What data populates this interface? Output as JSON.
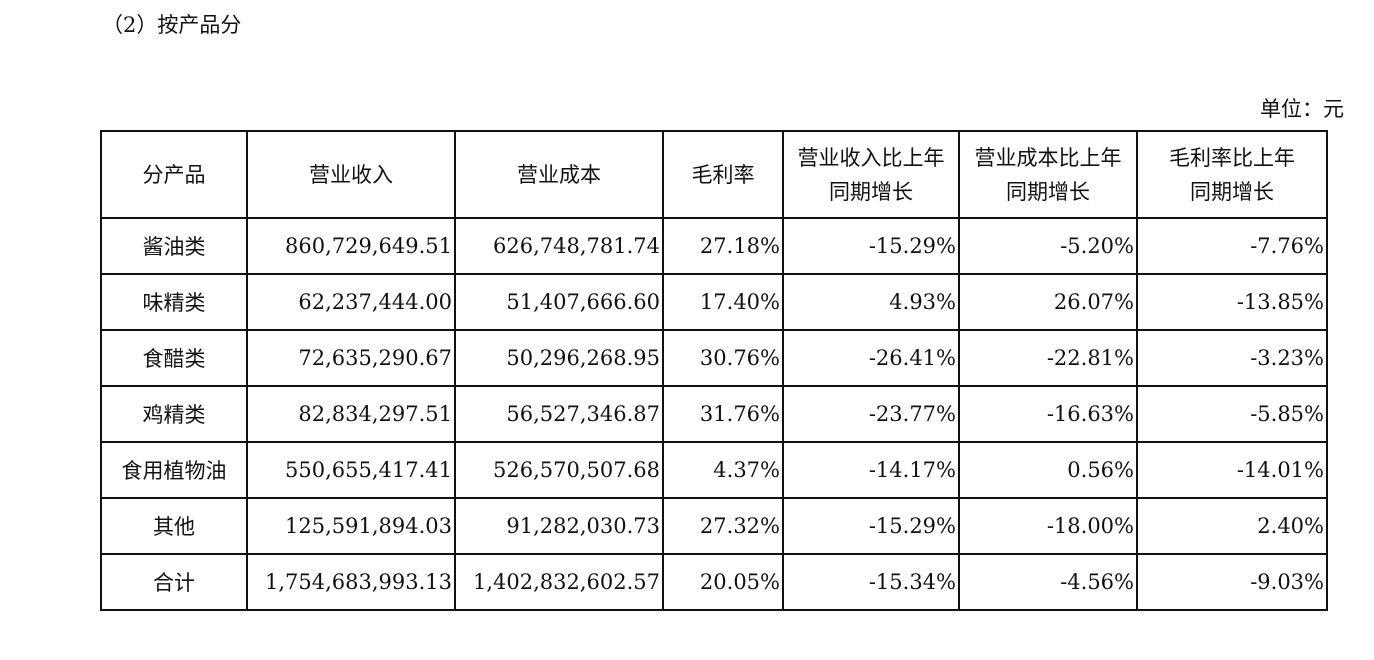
{
  "section_title": "（2）按产品分",
  "unit_label": "单位：元",
  "table": {
    "headers": [
      [
        "分产品"
      ],
      [
        "营业收入"
      ],
      [
        "营业成本"
      ],
      [
        "毛利率"
      ],
      [
        "营业收入比上年",
        "同期增长"
      ],
      [
        "营业成本比上年",
        "同期增长"
      ],
      [
        "毛利率比上年",
        "同期增长"
      ]
    ],
    "rows": [
      [
        "酱油类",
        "860,729,649.51",
        "626,748,781.74",
        "27.18%",
        "-15.29%",
        "-5.20%",
        "-7.76%"
      ],
      [
        "味精类",
        "62,237,444.00",
        "51,407,666.60",
        "17.40%",
        "4.93%",
        "26.07%",
        "-13.85%"
      ],
      [
        "食醋类",
        "72,635,290.67",
        "50,296,268.95",
        "30.76%",
        "-26.41%",
        "-22.81%",
        "-3.23%"
      ],
      [
        "鸡精类",
        "82,834,297.51",
        "56,527,346.87",
        "31.76%",
        "-23.77%",
        "-16.63%",
        "-5.85%"
      ],
      [
        "食用植物油",
        "550,655,417.41",
        "526,570,507.68",
        "4.37%",
        "-14.17%",
        "0.56%",
        "-14.01%"
      ],
      [
        "其他",
        "125,591,894.03",
        "91,282,030.73",
        "27.32%",
        "-15.29%",
        "-18.00%",
        "2.40%"
      ],
      [
        "合计",
        "1,754,683,993.13",
        "1,402,832,602.57",
        "20.05%",
        "-15.34%",
        "-4.56%",
        "-9.03%"
      ]
    ]
  }
}
